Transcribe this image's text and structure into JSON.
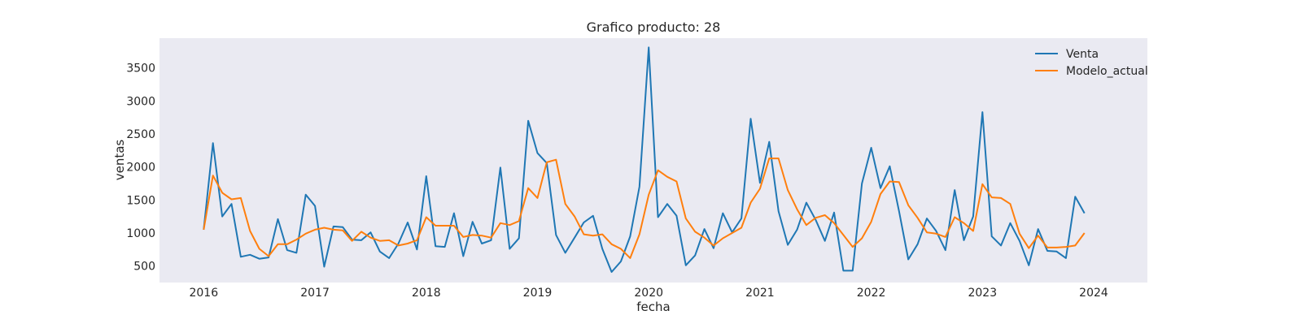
{
  "chart_data": {
    "type": "line",
    "title": "Grafico producto: 28",
    "xlabel": "fecha",
    "ylabel": "ventas",
    "xlim": [
      "2015-08-08",
      "2024-06-25"
    ],
    "ylim": [
      250,
      3950
    ],
    "x_ticks": [
      "2016",
      "2017",
      "2018",
      "2019",
      "2020",
      "2021",
      "2022",
      "2023",
      "2024"
    ],
    "y_ticks": [
      500,
      1000,
      1500,
      2000,
      2500,
      3000,
      3500
    ],
    "grid": false,
    "legend_position": "top-right",
    "x": [
      "2016-01",
      "2016-02",
      "2016-03",
      "2016-04",
      "2016-05",
      "2016-06",
      "2016-07",
      "2016-08",
      "2016-09",
      "2016-10",
      "2016-11",
      "2016-12",
      "2017-01",
      "2017-02",
      "2017-03",
      "2017-04",
      "2017-05",
      "2017-06",
      "2017-07",
      "2017-08",
      "2017-09",
      "2017-10",
      "2017-11",
      "2017-12",
      "2018-01",
      "2018-02",
      "2018-03",
      "2018-04",
      "2018-05",
      "2018-06",
      "2018-07",
      "2018-08",
      "2018-09",
      "2018-10",
      "2018-11",
      "2018-12",
      "2019-01",
      "2019-02",
      "2019-03",
      "2019-04",
      "2019-05",
      "2019-06",
      "2019-07",
      "2019-08",
      "2019-09",
      "2019-10",
      "2019-11",
      "2019-12",
      "2020-01",
      "2020-02",
      "2020-03",
      "2020-04",
      "2020-05",
      "2020-06",
      "2020-07",
      "2020-08",
      "2020-09",
      "2020-10",
      "2020-11",
      "2020-12",
      "2021-01",
      "2021-02",
      "2021-03",
      "2021-04",
      "2021-05",
      "2021-06",
      "2021-07",
      "2021-08",
      "2021-09",
      "2021-10",
      "2021-11",
      "2021-12",
      "2022-01",
      "2022-02",
      "2022-03",
      "2022-04",
      "2022-05",
      "2022-06",
      "2022-07",
      "2022-08",
      "2022-09",
      "2022-10",
      "2022-11",
      "2022-12",
      "2023-01",
      "2023-02",
      "2023-03",
      "2023-04",
      "2023-05",
      "2023-06",
      "2023-07",
      "2023-08",
      "2023-09",
      "2023-10",
      "2023-11",
      "2023-12"
    ],
    "series": [
      {
        "name": "Venta",
        "color": "#1f77b4",
        "values": [
          1050,
          2360,
          1250,
          1440,
          640,
          670,
          610,
          630,
          1210,
          740,
          700,
          1580,
          1410,
          490,
          1100,
          1090,
          900,
          890,
          1010,
          720,
          620,
          840,
          1160,
          750,
          1860,
          800,
          790,
          1300,
          650,
          1170,
          840,
          890,
          1990,
          760,
          920,
          2700,
          2210,
          2060,
          970,
          700,
          930,
          1160,
          1260,
          760,
          410,
          570,
          950,
          1700,
          3810,
          1240,
          1440,
          1260,
          510,
          660,
          1060,
          770,
          1300,
          1010,
          1220,
          2730,
          1760,
          2380,
          1330,
          820,
          1050,
          1460,
          1200,
          880,
          1310,
          430,
          430,
          1750,
          2290,
          1680,
          2010,
          1330,
          600,
          830,
          1220,
          1030,
          740,
          1650,
          890,
          1250,
          2830,
          950,
          810,
          1150,
          880,
          510,
          1060,
          730,
          720,
          620,
          1550,
          1300
        ]
      },
      {
        "name": "Modelo_actual",
        "color": "#ff7f0e",
        "values": [
          1050,
          1870,
          1610,
          1510,
          1530,
          1030,
          760,
          650,
          830,
          830,
          900,
          990,
          1050,
          1080,
          1050,
          1040,
          880,
          1020,
          930,
          880,
          890,
          810,
          840,
          890,
          1240,
          1110,
          1110,
          1110,
          940,
          970,
          960,
          930,
          1150,
          1120,
          1180,
          1680,
          1530,
          2070,
          2110,
          1440,
          1250,
          980,
          960,
          980,
          830,
          760,
          620,
          980,
          1580,
          1950,
          1850,
          1780,
          1220,
          1020,
          930,
          810,
          920,
          1000,
          1080,
          1460,
          1670,
          2130,
          2130,
          1650,
          1360,
          1120,
          1230,
          1270,
          1150,
          970,
          790,
          920,
          1170,
          1590,
          1780,
          1770,
          1420,
          1230,
          1010,
          990,
          940,
          1240,
          1150,
          1030,
          1740,
          1540,
          1530,
          1440,
          990,
          770,
          960,
          780,
          780,
          790,
          810,
          1000
        ]
      }
    ]
  }
}
